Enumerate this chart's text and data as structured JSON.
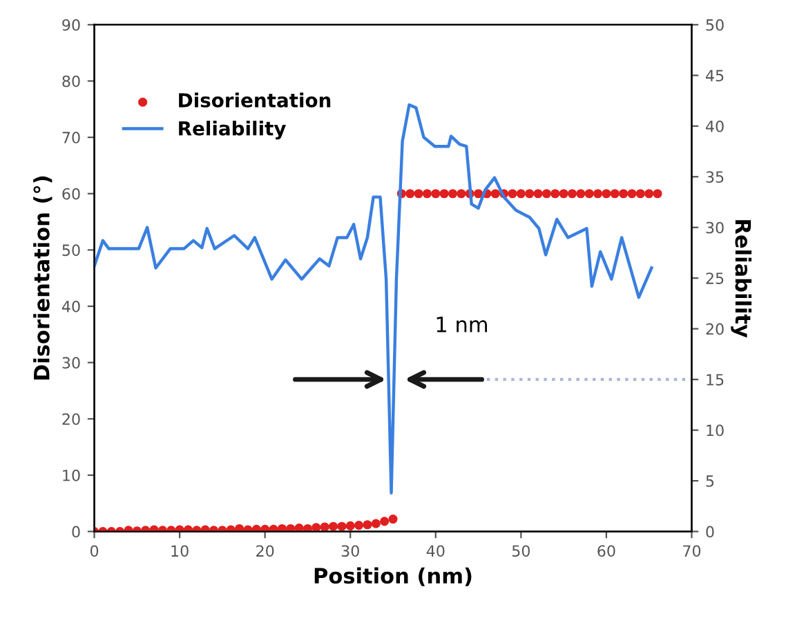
{
  "chart_data": {
    "type": "scatter",
    "xlabel": "Position (nm)",
    "ylabel": "Disorientation (°)",
    "y2label": "Reliability",
    "xlim": [
      0,
      70
    ],
    "xticks": [
      0,
      10,
      20,
      30,
      40,
      50,
      60,
      70
    ],
    "ylim": [
      0,
      90
    ],
    "yticks": [
      0,
      10,
      20,
      30,
      40,
      50,
      60,
      70,
      80,
      90
    ],
    "y2lim": [
      0,
      50
    ],
    "y2ticks": [
      0,
      5,
      10,
      15,
      20,
      25,
      30,
      35,
      40,
      45,
      50
    ],
    "grid": false,
    "legend": "top left",
    "marker": "circle",
    "annotations": [
      "1 nm"
    ],
    "series": [
      {
        "name": "Disorientation",
        "color": "#e02020",
        "x": [
          0,
          1,
          2,
          3,
          4,
          5,
          6,
          7,
          8,
          9,
          10,
          11,
          12,
          13,
          14,
          15,
          16,
          17,
          18,
          19,
          20,
          21,
          22,
          23,
          24,
          25,
          26,
          27,
          28,
          29,
          30,
          31,
          32,
          33,
          34,
          35,
          36,
          37,
          38,
          39,
          40,
          41,
          42,
          43,
          44,
          45,
          46,
          47,
          48,
          49,
          50,
          51,
          52,
          53,
          54,
          55,
          56,
          57,
          58,
          59,
          60,
          61,
          62,
          63,
          64,
          65,
          66
        ],
        "values": [
          0,
          0,
          0,
          0,
          0.2,
          0.1,
          0.2,
          0.3,
          0.2,
          0.2,
          0.3,
          0.3,
          0.2,
          0.3,
          0.2,
          0.2,
          0.3,
          0.5,
          0.3,
          0.4,
          0.4,
          0.4,
          0.5,
          0.5,
          0.6,
          0.5,
          0.7,
          0.8,
          0.9,
          0.9,
          1.0,
          1.1,
          1.2,
          1.4,
          1.8,
          2.2,
          60,
          60,
          60,
          60,
          60,
          60,
          60,
          60,
          60,
          60,
          60,
          60,
          60,
          60,
          60,
          60,
          60,
          60,
          60,
          60,
          60,
          60,
          60,
          60,
          60,
          60,
          60,
          60,
          60,
          60,
          60
        ]
      },
      {
        "name": "Reliability",
        "type": "line",
        "axis": "y2",
        "color": "#3a7fe0",
        "marker": "none",
        "x": [
          0,
          1,
          1.7,
          3,
          5.2,
          6.2,
          7.2,
          8.9,
          10.5,
          11.6,
          12.6,
          13.2,
          14.1,
          16.4,
          18,
          18.8,
          20.8,
          22.4,
          24.3,
          26.4,
          27.5,
          28.5,
          29.6,
          30.4,
          31.2,
          32,
          32.7,
          33.5,
          34.2,
          34.8,
          35.4,
          36.1,
          36.9,
          37.7,
          38.6,
          39.9,
          41.5,
          41.8,
          42.8,
          43.6,
          44.2,
          45,
          45.8,
          46.9,
          48,
          49.4,
          51,
          52.1,
          52.9,
          54.2,
          55.5,
          57.7,
          58.3,
          59.3,
          60.6,
          61.8,
          63.8,
          65.3
        ],
        "values": [
          26.2,
          28.7,
          27.9,
          27.9,
          27.9,
          30,
          26,
          27.9,
          27.9,
          28.7,
          28,
          29.9,
          27.9,
          29.2,
          27.9,
          29,
          24.9,
          26.8,
          24.9,
          26.9,
          26.2,
          29,
          29,
          30.3,
          26.9,
          29,
          33,
          33,
          24.9,
          3.8,
          24.9,
          38.5,
          42.1,
          41.8,
          38.9,
          38,
          38,
          39,
          38.2,
          38,
          32.3,
          31.9,
          33.7,
          34.9,
          33,
          31.7,
          31,
          29.9,
          27.3,
          30.8,
          29,
          29.9,
          24.2,
          27.6,
          24.9,
          29,
          23.1,
          26
        ]
      },
      {
        "type": "line",
        "axis": "y2",
        "color": "#a8b8d8",
        "line_style": "dotted",
        "marker": "none",
        "x": [
          46,
          70
        ],
        "values": [
          15,
          15
        ]
      }
    ]
  }
}
